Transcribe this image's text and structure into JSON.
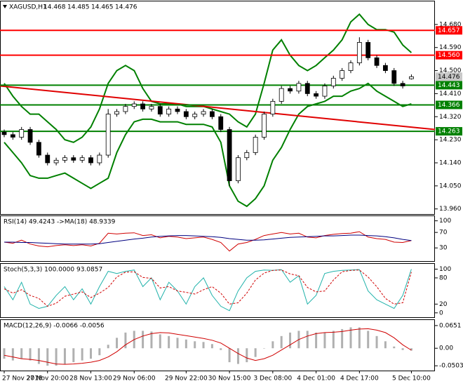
{
  "chart_data": [
    {
      "type": "candlestick",
      "header": {
        "symbol": "XAGUSD,H1",
        "ohlc": [
          14.468,
          14.485,
          14.465,
          14.476
        ]
      },
      "categories": [
        "27 Nov 2018",
        null,
        null,
        null,
        null,
        "27 Nov 20:00",
        null,
        null,
        null,
        null,
        "28 Nov 13:00",
        null,
        null,
        null,
        null,
        "29 Nov 06:00",
        null,
        null,
        null,
        null,
        null,
        "29 Nov 22:00",
        null,
        null,
        null,
        null,
        "30 Nov 15:00",
        null,
        null,
        null,
        null,
        "3 Dec 08:00",
        null,
        null,
        null,
        null,
        "4 Dec 01:00",
        null,
        null,
        null,
        null,
        "4 Dec 17:00",
        null,
        null,
        null,
        null,
        null,
        "5 Dec 10:00"
      ],
      "open": [
        14.26,
        14.25,
        14.24,
        14.27,
        14.22,
        14.17,
        14.14,
        14.15,
        14.16,
        14.15,
        14.16,
        14.14,
        14.17,
        14.33,
        14.34,
        14.36,
        14.37,
        14.35,
        14.36,
        14.33,
        14.35,
        14.34,
        14.32,
        14.33,
        14.34,
        14.32,
        14.27,
        14.07,
        14.16,
        14.18,
        14.24,
        14.33,
        14.38,
        14.43,
        14.42,
        14.45,
        14.41,
        14.4,
        14.44,
        14.47,
        14.5,
        14.53,
        14.61,
        14.55,
        14.52,
        14.5,
        14.45,
        14.468
      ],
      "high": [
        14.27,
        14.26,
        14.28,
        14.28,
        14.23,
        14.18,
        14.16,
        14.17,
        14.17,
        14.17,
        14.17,
        14.18,
        14.35,
        14.35,
        14.37,
        14.38,
        14.38,
        14.37,
        14.37,
        14.36,
        14.36,
        14.35,
        14.34,
        14.35,
        14.35,
        14.33,
        14.28,
        14.17,
        14.19,
        14.25,
        14.34,
        14.39,
        14.44,
        14.44,
        14.46,
        14.46,
        14.42,
        14.45,
        14.48,
        14.51,
        14.54,
        14.63,
        14.62,
        14.56,
        14.53,
        14.51,
        14.46,
        14.485
      ],
      "low": [
        14.24,
        14.23,
        14.23,
        14.21,
        14.16,
        14.13,
        14.13,
        14.14,
        14.14,
        14.14,
        14.13,
        14.13,
        14.16,
        14.32,
        14.33,
        14.35,
        14.34,
        14.34,
        14.32,
        14.32,
        14.33,
        14.31,
        14.31,
        14.32,
        14.31,
        14.26,
        14.05,
        14.06,
        14.15,
        14.17,
        14.23,
        14.32,
        14.37,
        14.41,
        14.41,
        14.4,
        14.39,
        14.39,
        14.43,
        14.46,
        14.49,
        14.52,
        14.54,
        14.51,
        14.49,
        14.44,
        14.43,
        14.465
      ],
      "close": [
        14.25,
        14.24,
        14.27,
        14.22,
        14.17,
        14.14,
        14.15,
        14.16,
        14.15,
        14.16,
        14.14,
        14.17,
        14.33,
        14.34,
        14.36,
        14.37,
        14.35,
        14.36,
        14.33,
        14.35,
        14.34,
        14.32,
        14.33,
        14.34,
        14.32,
        14.27,
        14.07,
        14.16,
        14.18,
        14.24,
        14.33,
        14.38,
        14.43,
        14.42,
        14.45,
        14.41,
        14.4,
        14.44,
        14.47,
        14.5,
        14.53,
        14.61,
        14.55,
        14.52,
        14.5,
        14.45,
        14.44,
        14.476
      ],
      "bands": [
        {
          "color": "#008000",
          "values": [
            14.45,
            14.4,
            14.36,
            14.33,
            14.33,
            14.3,
            14.27,
            14.23,
            14.22,
            14.24,
            14.28,
            14.35,
            14.45,
            14.5,
            14.52,
            14.5,
            14.43,
            14.38,
            14.37,
            14.37,
            14.37,
            14.36,
            14.36,
            14.36,
            14.35,
            14.34,
            14.33,
            14.3,
            14.28,
            14.33,
            14.45,
            14.58,
            14.62,
            14.56,
            14.52,
            14.5,
            14.52,
            14.55,
            14.58,
            14.62,
            14.69,
            14.72,
            14.68,
            14.66,
            14.66,
            14.65,
            14.6,
            14.57
          ]
        },
        {
          "color": "#008000",
          "values": [
            14.22,
            14.18,
            14.14,
            14.09,
            14.08,
            14.08,
            14.09,
            14.1,
            14.08,
            14.06,
            14.04,
            14.06,
            14.08,
            14.18,
            14.25,
            14.3,
            14.31,
            14.31,
            14.3,
            14.3,
            14.3,
            14.29,
            14.29,
            14.29,
            14.28,
            14.22,
            14.05,
            13.99,
            13.97,
            14.0,
            14.05,
            14.15,
            14.2,
            14.27,
            14.33,
            14.36,
            14.37,
            14.38,
            14.4,
            14.4,
            14.42,
            14.43,
            14.45,
            14.42,
            14.4,
            14.38,
            14.36,
            14.37
          ]
        }
      ],
      "trendlines": [
        {
          "color": "#e00000",
          "start": 14.44,
          "end": 14.27
        }
      ],
      "levels": [
        {
          "value": 14.657,
          "label": "14.657",
          "color": "#ff0000"
        },
        {
          "value": 14.56,
          "label": "14.560",
          "color": "#ff0000"
        },
        {
          "value": 14.443,
          "label": "14.443",
          "color": "#008000"
        },
        {
          "value": 14.366,
          "label": "14.366",
          "color": "#008000"
        },
        {
          "value": 14.263,
          "label": "14.263",
          "color": "#008000"
        }
      ],
      "last_price": 14.476,
      "ylim": [
        13.94,
        14.77
      ],
      "yticks": [
        {
          "value": 14.68,
          "label": "14.680"
        },
        {
          "value": 14.59,
          "label": "14.590"
        },
        {
          "value": 14.5,
          "label": "14.500"
        },
        {
          "value": 14.41,
          "label": "14.410"
        },
        {
          "value": 14.32,
          "label": "14.320"
        },
        {
          "value": 14.23,
          "label": "14.230"
        },
        {
          "value": 14.14,
          "label": "14.140"
        },
        {
          "value": 14.05,
          "label": "14.050"
        },
        {
          "value": 13.96,
          "label": "13.960"
        }
      ]
    },
    {
      "type": "line",
      "title": "RSI(14) 49.4243 ->MA(18) 48.9339",
      "series": [
        {
          "color": "#d00000",
          "values": [
            45,
            42,
            50,
            40,
            35,
            33,
            36,
            38,
            36,
            38,
            35,
            42,
            68,
            66,
            68,
            69,
            62,
            64,
            56,
            60,
            58,
            54,
            56,
            58,
            52,
            44,
            22,
            40,
            44,
            52,
            62,
            66,
            70,
            66,
            68,
            58,
            56,
            62,
            65,
            67,
            68,
            72,
            58,
            54,
            52,
            45,
            44,
            49
          ]
        },
        {
          "color": "#000080",
          "values": [
            45,
            45,
            44,
            44,
            43,
            42,
            41,
            40,
            40,
            40,
            40,
            41,
            44,
            47,
            50,
            53,
            55,
            58,
            60,
            61,
            62,
            62,
            61,
            60,
            59,
            57,
            54,
            52,
            50,
            50,
            51,
            53,
            55,
            57,
            58,
            59,
            60,
            61,
            61,
            62,
            63,
            63,
            62,
            61,
            59,
            56,
            52,
            49
          ]
        }
      ],
      "ylim": [
        -4,
        112
      ],
      "yticks": [
        100,
        70,
        30
      ]
    },
    {
      "type": "line",
      "title": "Stoch(5,3,3) 100.0000 93.0857",
      "series": [
        {
          "color": "#20b2aa",
          "dash": false,
          "values": [
            60,
            30,
            70,
            20,
            10,
            15,
            40,
            60,
            30,
            55,
            20,
            60,
            95,
            90,
            95,
            98,
            60,
            80,
            30,
            70,
            50,
            20,
            60,
            80,
            40,
            15,
            5,
            50,
            80,
            95,
            98,
            97,
            99,
            70,
            85,
            20,
            40,
            90,
            95,
            97,
            98,
            99,
            50,
            30,
            20,
            10,
            40,
            100
          ]
        },
        {
          "color": "#d00000",
          "dash": true,
          "values": [
            55,
            45,
            53,
            40,
            33,
            15,
            22,
            38,
            43,
            48,
            35,
            45,
            58,
            82,
            93,
            94,
            81,
            79,
            57,
            60,
            50,
            47,
            43,
            53,
            60,
            45,
            20,
            23,
            45,
            75,
            91,
            97,
            98,
            89,
            85,
            58,
            48,
            50,
            75,
            94,
            97,
            98,
            82,
            60,
            33,
            20,
            23,
            93
          ]
        }
      ],
      "ylim": [
        -10,
        112
      ],
      "yticks": [
        100,
        80,
        20,
        0
      ]
    },
    {
      "type": "macd",
      "title": "MACD(12,26,9) -0.0066 -0.0056",
      "series": [
        {
          "color": "#b0b0b0",
          "kind": "histogram",
          "values": [
            -0.03,
            -0.035,
            -0.03,
            -0.035,
            -0.045,
            -0.05,
            -0.05,
            -0.045,
            -0.04,
            -0.035,
            -0.03,
            -0.02,
            0.01,
            0.03,
            0.045,
            0.05,
            0.05,
            0.048,
            0.04,
            0.035,
            0.03,
            0.025,
            0.02,
            0.018,
            0.012,
            -0.005,
            -0.04,
            -0.045,
            -0.04,
            -0.025,
            0.0,
            0.02,
            0.035,
            0.045,
            0.05,
            0.05,
            0.045,
            0.045,
            0.05,
            0.055,
            0.06,
            0.06,
            0.05,
            0.035,
            0.02,
            0.005,
            -0.005,
            -0.0066
          ]
        },
        {
          "color": "#d00000",
          "kind": "line",
          "values": [
            -0.02,
            -0.025,
            -0.03,
            -0.032,
            -0.035,
            -0.04,
            -0.045,
            -0.046,
            -0.045,
            -0.043,
            -0.04,
            -0.035,
            -0.025,
            -0.01,
            0.01,
            0.025,
            0.035,
            0.042,
            0.045,
            0.044,
            0.04,
            0.036,
            0.032,
            0.028,
            0.023,
            0.015,
            0.0,
            -0.015,
            -0.028,
            -0.035,
            -0.03,
            -0.02,
            -0.005,
            0.01,
            0.025,
            0.035,
            0.042,
            0.045,
            0.046,
            0.048,
            0.052,
            0.055,
            0.056,
            0.052,
            0.045,
            0.03,
            0.01,
            -0.0056
          ]
        }
      ],
      "ylim": [
        -0.064,
        0.081
      ],
      "yticks": [
        0.0651,
        {
          "value": 0,
          "label": "0.00"
        },
        -0.0503
      ]
    }
  ]
}
